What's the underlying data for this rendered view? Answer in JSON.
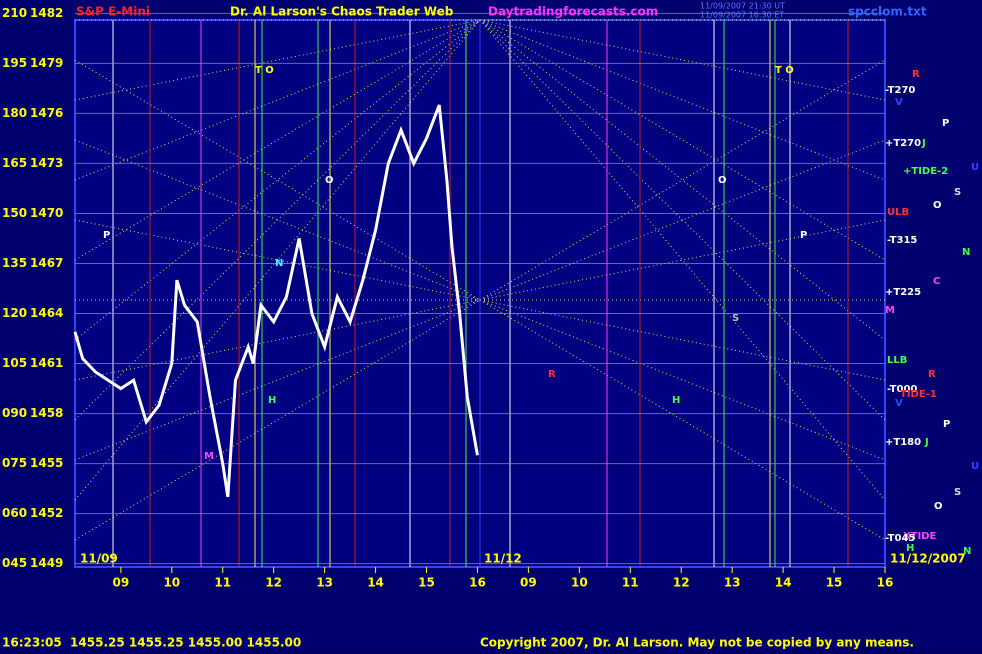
{
  "chart_data": {
    "type": "line",
    "title": "Dr. Al Larson's Chaos Trader Web",
    "header": {
      "left": "S&P E-Mini",
      "site": "Daytradingforecasts.com",
      "file": "spcclom.txt",
      "stamp1": "11/09/2007 21:30 UT",
      "stamp2": "11/09/2007 16:30 ET"
    },
    "footer": {
      "quote": "16:23:05  1455.25 1455.25 1455.00 1455.00",
      "copyright": "Copyright 2007, Dr. Al Larson. May not be copied by any means."
    },
    "date_labels": [
      "11/09",
      "11/12",
      "11/12/2007"
    ],
    "x": [
      8.1,
      8.25,
      8.5,
      8.75,
      9.0,
      9.25,
      9.5,
      9.75,
      10.0,
      10.1,
      10.25,
      10.5,
      10.75,
      11.0,
      11.1,
      11.25,
      11.5,
      11.6,
      11.75,
      12.0,
      12.25,
      12.5,
      12.75,
      13.0,
      13.25,
      13.5,
      13.75,
      14.0,
      14.25,
      14.5,
      14.75,
      15.0,
      15.25,
      15.4,
      15.5,
      15.65,
      15.8,
      16.0
    ],
    "values": [
      1462.9,
      1461.3,
      1460.5,
      1460,
      1459.5,
      1460,
      1457.5,
      1458.5,
      1461,
      1466,
      1464.5,
      1463.5,
      1459,
      1455,
      1453,
      1460,
      1462,
      1461,
      1464.5,
      1463.5,
      1465,
      1468.5,
      1464,
      1462,
      1465,
      1463.5,
      1466,
      1469,
      1473,
      1475,
      1473,
      1474.5,
      1476.5,
      1472,
      1468,
      1464,
      1459,
      1455.5
    ],
    "color": "#ffffff",
    "xlim": [
      8.1,
      24.0
    ],
    "xticks": [
      {
        "value": 9,
        "label": "09"
      },
      10,
      11,
      12,
      13,
      14,
      15,
      16,
      {
        "value": 17,
        "label": "09"
      },
      {
        "value": 18,
        "label": "10"
      },
      {
        "value": 19,
        "label": "11"
      },
      {
        "value": 20,
        "label": "12"
      },
      {
        "value": 21,
        "label": "13"
      },
      {
        "value": 22,
        "label": "14"
      },
      {
        "value": 23,
        "label": "15"
      },
      {
        "value": 24,
        "label": "16"
      }
    ],
    "ylim": [
      1448.8,
      1481.6
    ],
    "yticks": [
      1449,
      1452,
      1455,
      1458,
      1461,
      1464,
      1467,
      1470,
      1473,
      1476,
      1479,
      1482
    ],
    "y2lim": [
      44,
      208
    ],
    "y2ticks": [
      {
        "value": 45,
        "label": "045"
      },
      {
        "value": 60,
        "label": "060"
      },
      {
        "value": 75,
        "label": "075"
      },
      {
        "value": 90,
        "label": "090"
      },
      105,
      120,
      135,
      150,
      165,
      180,
      195,
      210
    ],
    "grid": true,
    "annotations": [
      "T O",
      "T O",
      "-T270",
      "+T270",
      "+TIDE-2",
      "ULB",
      "-T315",
      "+T225",
      "LLB",
      "-T000",
      "TIDE-1",
      "+T180",
      "XTIDE",
      "-T045",
      "R",
      "V",
      "P",
      "J",
      "U",
      "S",
      "O",
      "N",
      "C",
      "M",
      "R",
      "V",
      "P",
      "J",
      "U",
      "S",
      "O",
      "N",
      "H",
      "P",
      "O",
      "N",
      "H",
      "M",
      "S",
      "H",
      "R",
      "P",
      "O"
    ]
  }
}
